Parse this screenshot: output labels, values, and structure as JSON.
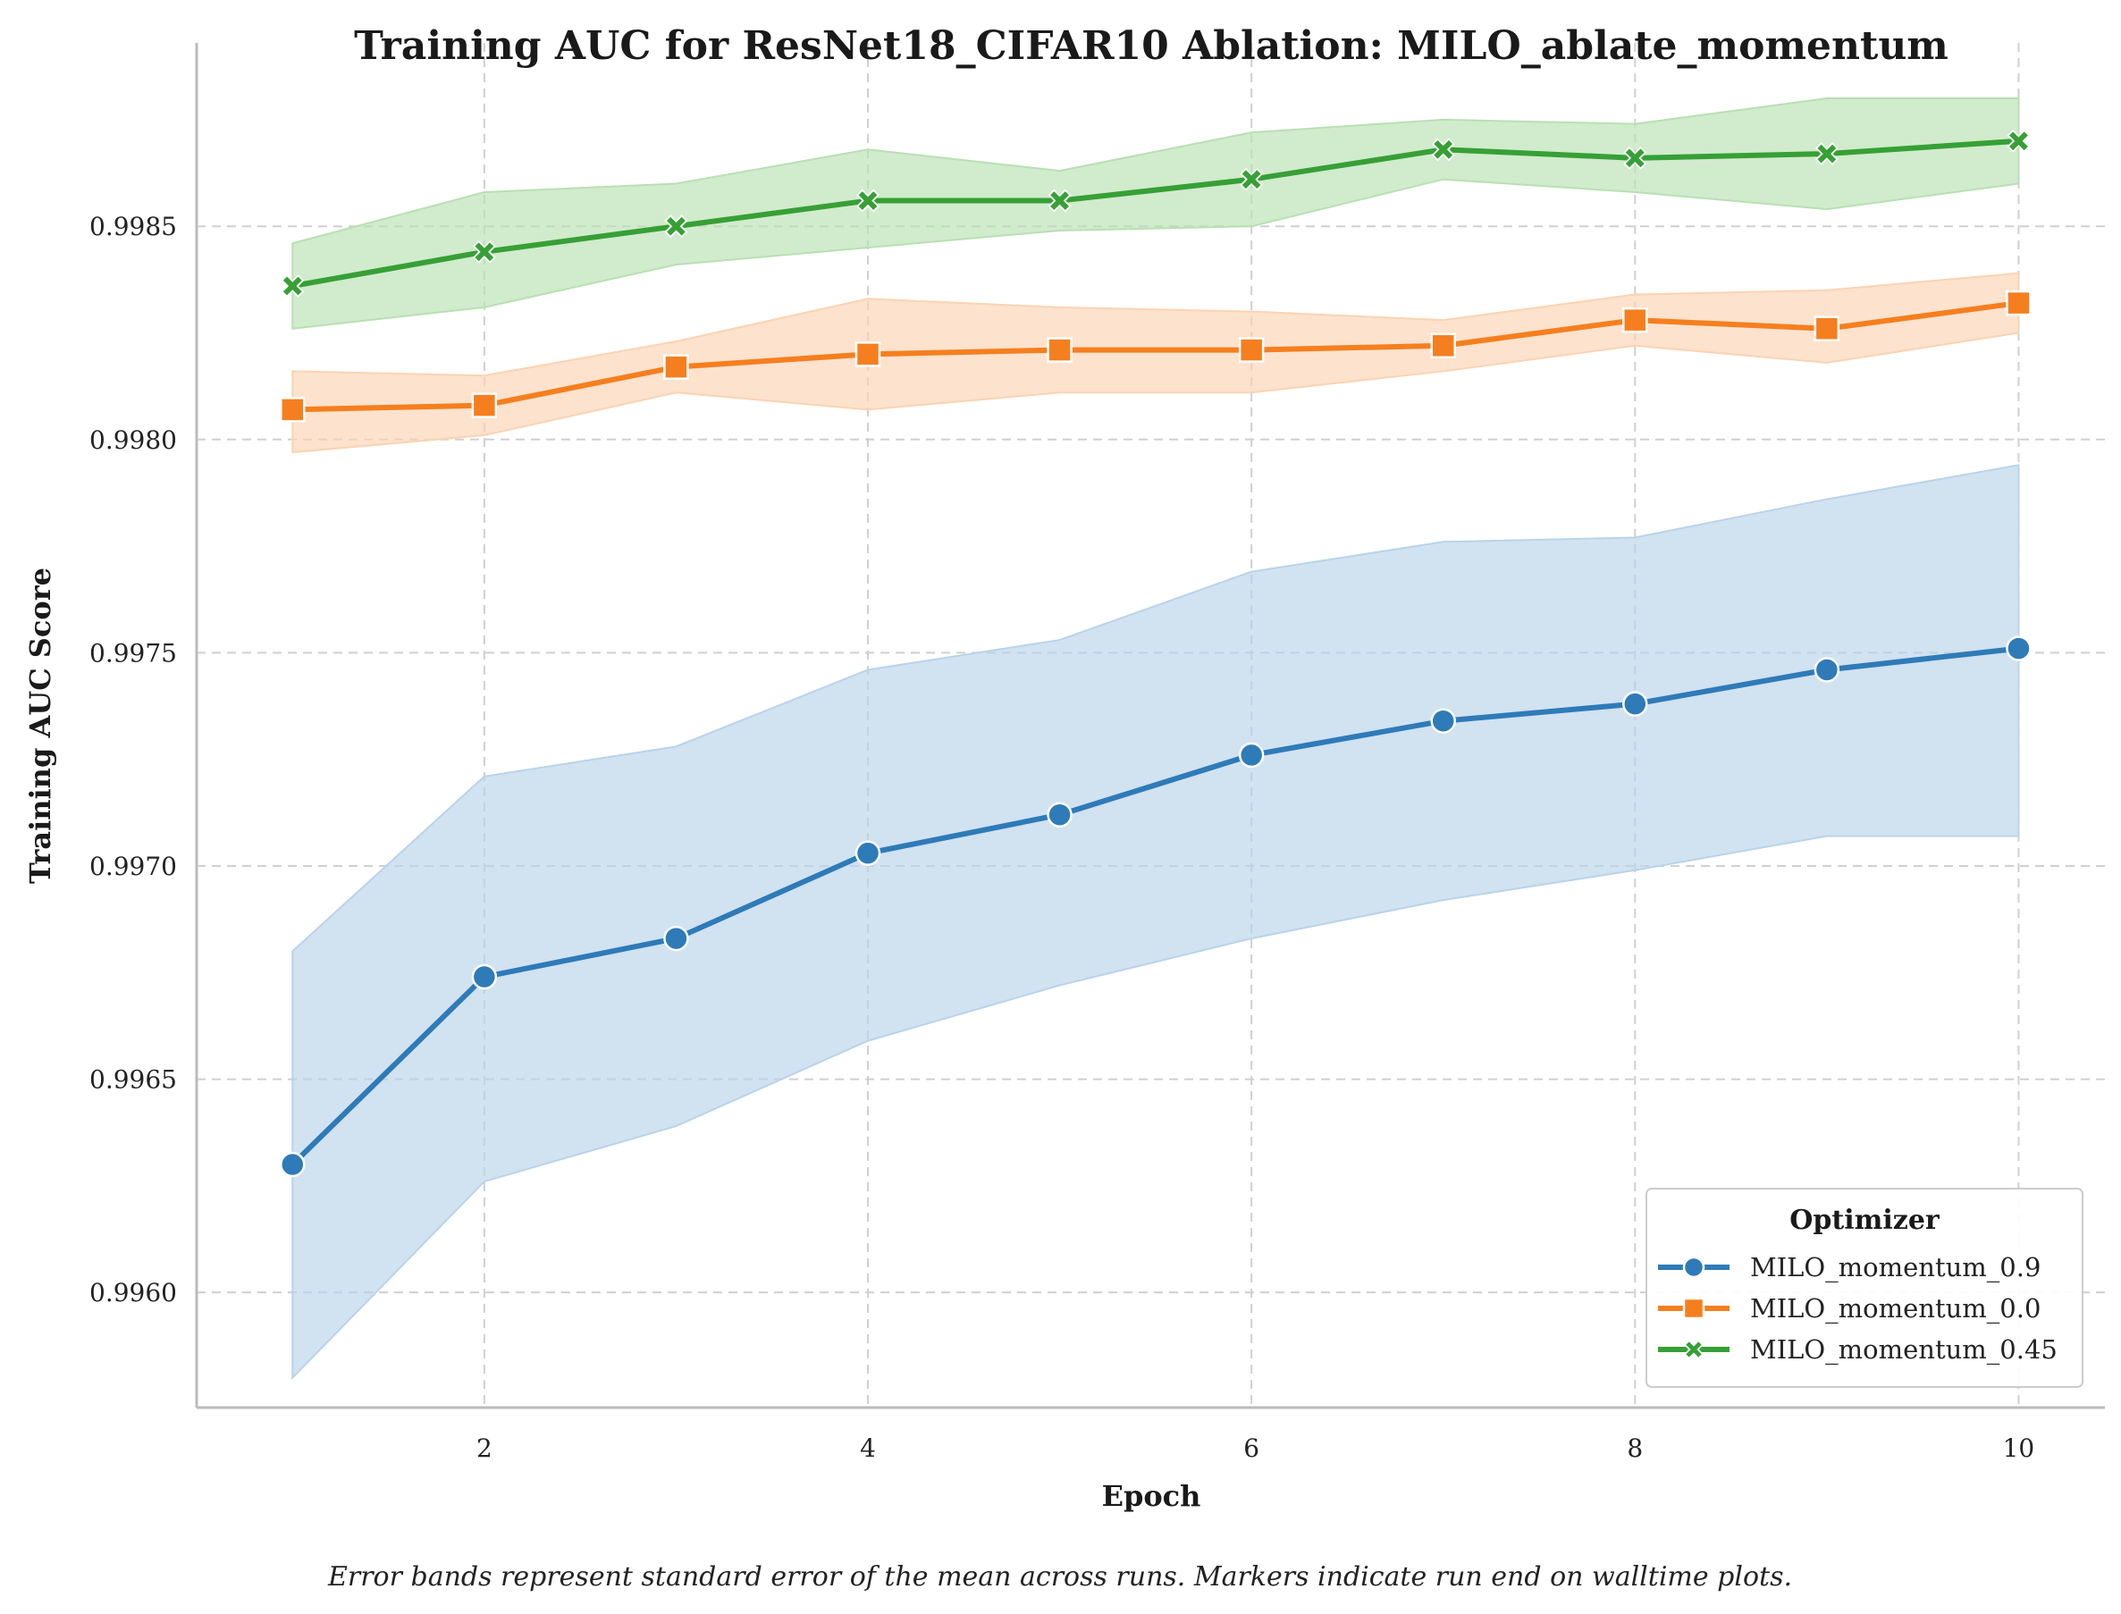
{
  "chart_data": {
    "type": "line",
    "title": "Training AUC for ResNet18_CIFAR10 Ablation: MILO_ablate_momentum",
    "xlabel": "Epoch",
    "ylabel": "Training AUC Score",
    "x": [
      1,
      2,
      3,
      4,
      5,
      6,
      7,
      8,
      9,
      10
    ],
    "xlim": [
      0.5,
      10.45
    ],
    "ylim": [
      0.99573,
      0.99893
    ],
    "xticks": [
      2,
      4,
      6,
      8,
      10
    ],
    "xtick_labels": [
      "2",
      "4",
      "6",
      "8",
      "10"
    ],
    "yticks": [
      0.996,
      0.9965,
      0.997,
      0.9975,
      0.998,
      0.9985
    ],
    "ytick_labels": [
      "0.9960",
      "0.9965",
      "0.9970",
      "0.9975",
      "0.9980",
      "0.9985"
    ],
    "grid": true,
    "legend": {
      "title": "Optimizer",
      "placement": "bottom-right"
    },
    "series": [
      {
        "name": "MILO_momentum_0.9",
        "color": "#2e7bb8",
        "band_color": "#b9d3ea",
        "marker": "circle",
        "values": [
          0.9963,
          0.99674,
          0.99683,
          0.99703,
          0.99712,
          0.99726,
          0.99734,
          0.99738,
          0.99746,
          0.99751
        ],
        "lower": [
          0.9958,
          0.99626,
          0.99639,
          0.99659,
          0.99672,
          0.99683,
          0.99692,
          0.99699,
          0.99707,
          0.99707
        ],
        "upper": [
          0.9968,
          0.99721,
          0.99728,
          0.99746,
          0.99753,
          0.99769,
          0.99776,
          0.99777,
          0.99786,
          0.99794
        ]
      },
      {
        "name": "MILO_momentum_0.0",
        "color": "#f57f1f",
        "band_color": "#fcd3b2",
        "marker": "square",
        "values": [
          0.99807,
          0.99808,
          0.99817,
          0.9982,
          0.99821,
          0.99821,
          0.99822,
          0.99828,
          0.99826,
          0.99832
        ],
        "lower": [
          0.99797,
          0.99801,
          0.99811,
          0.99807,
          0.99811,
          0.99811,
          0.99816,
          0.99822,
          0.99818,
          0.99825
        ],
        "upper": [
          0.99816,
          0.99815,
          0.99823,
          0.99833,
          0.99831,
          0.9983,
          0.99828,
          0.99834,
          0.99835,
          0.99839
        ]
      },
      {
        "name": "MILO_momentum_0.45",
        "color": "#36a035",
        "band_color": "#b8e0b2",
        "marker": "x",
        "values": [
          0.99836,
          0.99844,
          0.9985,
          0.99856,
          0.99856,
          0.99861,
          0.99868,
          0.99866,
          0.99867,
          0.9987
        ],
        "lower": [
          0.99826,
          0.99831,
          0.99841,
          0.99845,
          0.99849,
          0.9985,
          0.99861,
          0.99858,
          0.99854,
          0.9986
        ],
        "upper": [
          0.99846,
          0.99858,
          0.9986,
          0.99868,
          0.99863,
          0.99872,
          0.99875,
          0.99874,
          0.9988,
          0.9988
        ]
      }
    ],
    "caption": "Error bands represent standard error of the mean across runs. Markers indicate run end on walltime plots."
  }
}
